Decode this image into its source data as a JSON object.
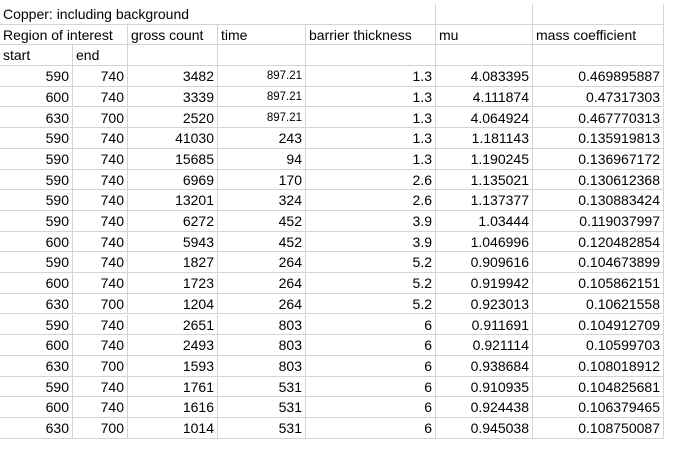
{
  "sheet": {
    "title": "Copper: including background",
    "headers": {
      "region": "Region of interest",
      "gross_count": "gross count",
      "time": "time",
      "barrier_thickness": "barrier thickness",
      "mu": "mu",
      "mass_coefficient": "mass coefficient"
    },
    "subheaders": {
      "start": "start",
      "end": "end"
    },
    "rows": [
      [
        "590",
        "740",
        "3482",
        "897.21",
        "1.3",
        "4.083395",
        "0.469895887"
      ],
      [
        "600",
        "740",
        "3339",
        "897.21",
        "1.3",
        "4.111874",
        "0.47317303"
      ],
      [
        "630",
        "700",
        "2520",
        "897.21",
        "1.3",
        "4.064924",
        "0.467770313"
      ],
      [
        "590",
        "740",
        "41030",
        "243",
        "1.3",
        "1.181143",
        "0.135919813"
      ],
      [
        "590",
        "740",
        "15685",
        "94",
        "1.3",
        "1.190245",
        "0.136967172"
      ],
      [
        "590",
        "740",
        "6969",
        "170",
        "2.6",
        "1.135021",
        "0.130612368"
      ],
      [
        "590",
        "740",
        "13201",
        "324",
        "2.6",
        "1.137377",
        "0.130883424"
      ],
      [
        "590",
        "740",
        "6272",
        "452",
        "3.9",
        "1.03444",
        "0.119037997"
      ],
      [
        "600",
        "740",
        "5943",
        "452",
        "3.9",
        "1.046996",
        "0.120482854"
      ],
      [
        "590",
        "740",
        "1827",
        "264",
        "5.2",
        "0.909616",
        "0.104673899"
      ],
      [
        "600",
        "740",
        "1723",
        "264",
        "5.2",
        "0.919942",
        "0.105862151"
      ],
      [
        "630",
        "700",
        "1204",
        "264",
        "5.2",
        "0.923013",
        "0.10621558"
      ],
      [
        "590",
        "740",
        "2651",
        "803",
        "6",
        "0.911691",
        "0.104912709"
      ],
      [
        "600",
        "740",
        "2493",
        "803",
        "6",
        "0.921114",
        "0.10599703"
      ],
      [
        "630",
        "700",
        "1593",
        "803",
        "6",
        "0.938684",
        "0.108018912"
      ],
      [
        "590",
        "740",
        "1761",
        "531",
        "6",
        "0.910935",
        "0.104825681"
      ],
      [
        "600",
        "740",
        "1616",
        "531",
        "6",
        "0.924438",
        "0.106379465"
      ],
      [
        "630",
        "700",
        "1014",
        "531",
        "6",
        "0.945038",
        "0.108750087"
      ]
    ]
  }
}
